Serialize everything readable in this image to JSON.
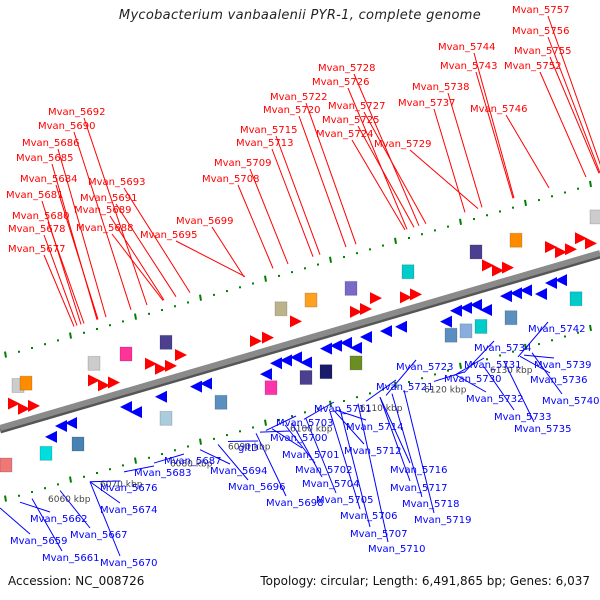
{
  "title": "Mycobacterium vanbaalenii PYR-1, complete genome",
  "footer": {
    "accession": "Accession: NC_008726",
    "summary": "Topology: circular; Length: 6,491,865 bp; Genes: 6,037"
  },
  "colors": {
    "forward_label": "#ff0000",
    "reverse_label": "#0000ff",
    "backbone": "#8a8a8a",
    "tick": "#008000",
    "forward_gene": "#ff0000",
    "reverse_gene": "#0000ff"
  },
  "scale_labels": [
    "6060 kbp",
    "6070 kbp",
    "6080 kbp",
    "6090 kbp",
    "6100 kbp",
    "6110 kbp",
    "6120 kbp",
    "6130 kbp"
  ],
  "forward_labels": [
    "Mvan_5677",
    "Mvan_5678",
    "Mvan_5680",
    "Mvan_5681",
    "Mvan_5684",
    "Mvan_5685",
    "Mvan_5686",
    "Mvan_5688",
    "Mvan_5689",
    "Mvan_5690",
    "Mvan_5691",
    "Mvan_5692",
    "Mvan_5693",
    "Mvan_5695",
    "Mvan_5699",
    "Mvan_5708",
    "Mvan_5709",
    "Mvan_5713",
    "Mvan_5715",
    "Mvan_5720",
    "Mvan_5722",
    "Mvan_5724",
    "Mvan_5725",
    "Mvan_5726",
    "Mvan_5727",
    "Mvan_5728",
    "Mvan_5729",
    "Mvan_5737",
    "Mvan_5738",
    "Mvan_5743",
    "Mvan_5744",
    "Mvan_5746",
    "Mvan_5752",
    "Mvan_5755",
    "Mvan_5756",
    "Mvan_5757"
  ],
  "reverse_labels": [
    "Mvan_5659",
    "Mvan_5661",
    "Mvan_5662",
    "Mvan_5667",
    "Mvan_5670",
    "Mvan_5674",
    "Mvan_5676",
    "Mvan_5683",
    "Mvan_5687",
    "Mvan_5694",
    "gltD",
    "Mvan_5696",
    "Mvan_5698",
    "Mvan_5700",
    "Mvan_5701",
    "Mvan_5702",
    "Mvan_5703",
    "Mvan_5704",
    "Mvan_5705",
    "Mvan_5706",
    "Mvan_5707",
    "Mvan_5710",
    "Mvan_5711",
    "Mvan_5712",
    "Mvan_5714",
    "Mvan_5716",
    "Mvan_5717",
    "Mvan_5718",
    "Mvan_5719",
    "Mvan_5721",
    "Mvan_5723",
    "Mvan_5730",
    "Mvan_5731",
    "Mvan_5732",
    "Mvan_5733",
    "Mvan_5734",
    "Mvan_5735",
    "Mvan_5736",
    "Mvan_5739",
    "Mvan_5740",
    "Mvan_5742"
  ]
}
